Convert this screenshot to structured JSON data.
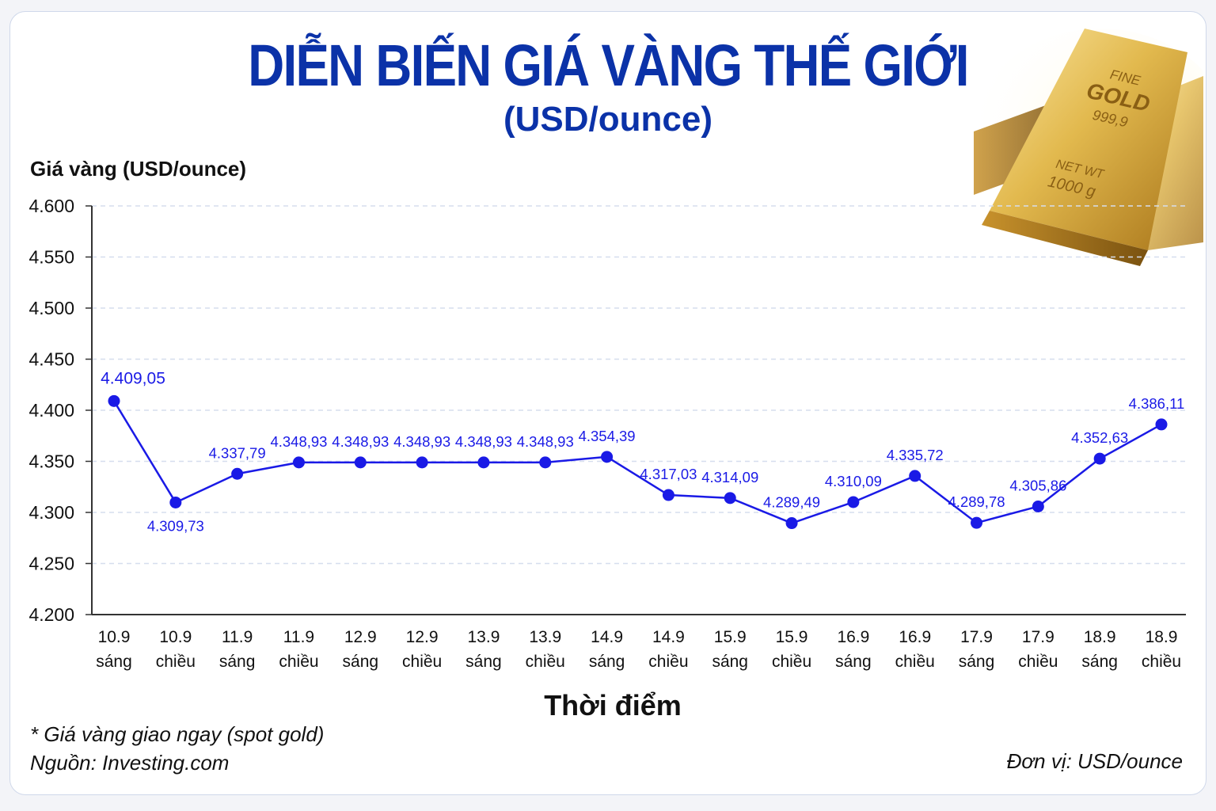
{
  "header": {
    "title": "DIỄN BIẾN GIÁ VÀNG THẾ GIỚI",
    "subtitle": "(USD/ounce)"
  },
  "footer": {
    "note": "* Giá vàng giao ngay (spot gold)",
    "source": "Nguồn: Investing.com",
    "unit": "Đơn vị: USD/ounce"
  },
  "gold_bar": {
    "line1": "FINE",
    "line2": "GOLD",
    "line3": "999,9",
    "line4": "NET WT",
    "line5": "1000 g"
  },
  "colors": {
    "title": "#0b32a8",
    "series": "#1a1ae6",
    "axis": "#333333",
    "grid": "#d6deee"
  },
  "chart_data": {
    "type": "line",
    "ylabel": "Giá vàng (USD/ounce)",
    "xlabel": "Thời điểm",
    "ylim": [
      4200,
      4600
    ],
    "yticks": [
      4200,
      4250,
      4300,
      4350,
      4400,
      4450,
      4500,
      4550,
      4600
    ],
    "ytick_labels": [
      "4.200",
      "4.250",
      "4.300",
      "4.350",
      "4.400",
      "4.450",
      "4.500",
      "4.550",
      "4.600"
    ],
    "grid": true,
    "categories": [
      [
        "10.9",
        "sáng"
      ],
      [
        "10.9",
        "chiều"
      ],
      [
        "11.9",
        "sáng"
      ],
      [
        "11.9",
        "chiều"
      ],
      [
        "12.9",
        "sáng"
      ],
      [
        "12.9",
        "chiều"
      ],
      [
        "13.9",
        "sáng"
      ],
      [
        "13.9",
        "chiều"
      ],
      [
        "14.9",
        "sáng"
      ],
      [
        "14.9",
        "chiều"
      ],
      [
        "15.9",
        "sáng"
      ],
      [
        "15.9",
        "chiều"
      ],
      [
        "16.9",
        "sáng"
      ],
      [
        "16.9",
        "chiều"
      ],
      [
        "17.9",
        "sáng"
      ],
      [
        "17.9",
        "chiều"
      ],
      [
        "18.9",
        "sáng"
      ],
      [
        "18.9",
        "chiều"
      ]
    ],
    "values": [
      4409.05,
      4309.73,
      4337.79,
      4348.93,
      4348.93,
      4348.93,
      4348.93,
      4348.93,
      4354.39,
      4317.03,
      4314.09,
      4289.49,
      4310.09,
      4335.72,
      4289.78,
      4305.86,
      4352.63,
      4386.11
    ],
    "value_labels": [
      "4.409,05",
      "4.309,73",
      "4.337,79",
      "4.348,93",
      "4.348,93",
      "4.348,93",
      "4.348,93",
      "4.348,93",
      "4.354,39",
      "4.317,03",
      "4.314,09",
      "4.289,49",
      "4.310,09",
      "4.335,72",
      "4.289,78",
      "4.305,86",
      "4.352,63",
      "4.386,11"
    ]
  }
}
